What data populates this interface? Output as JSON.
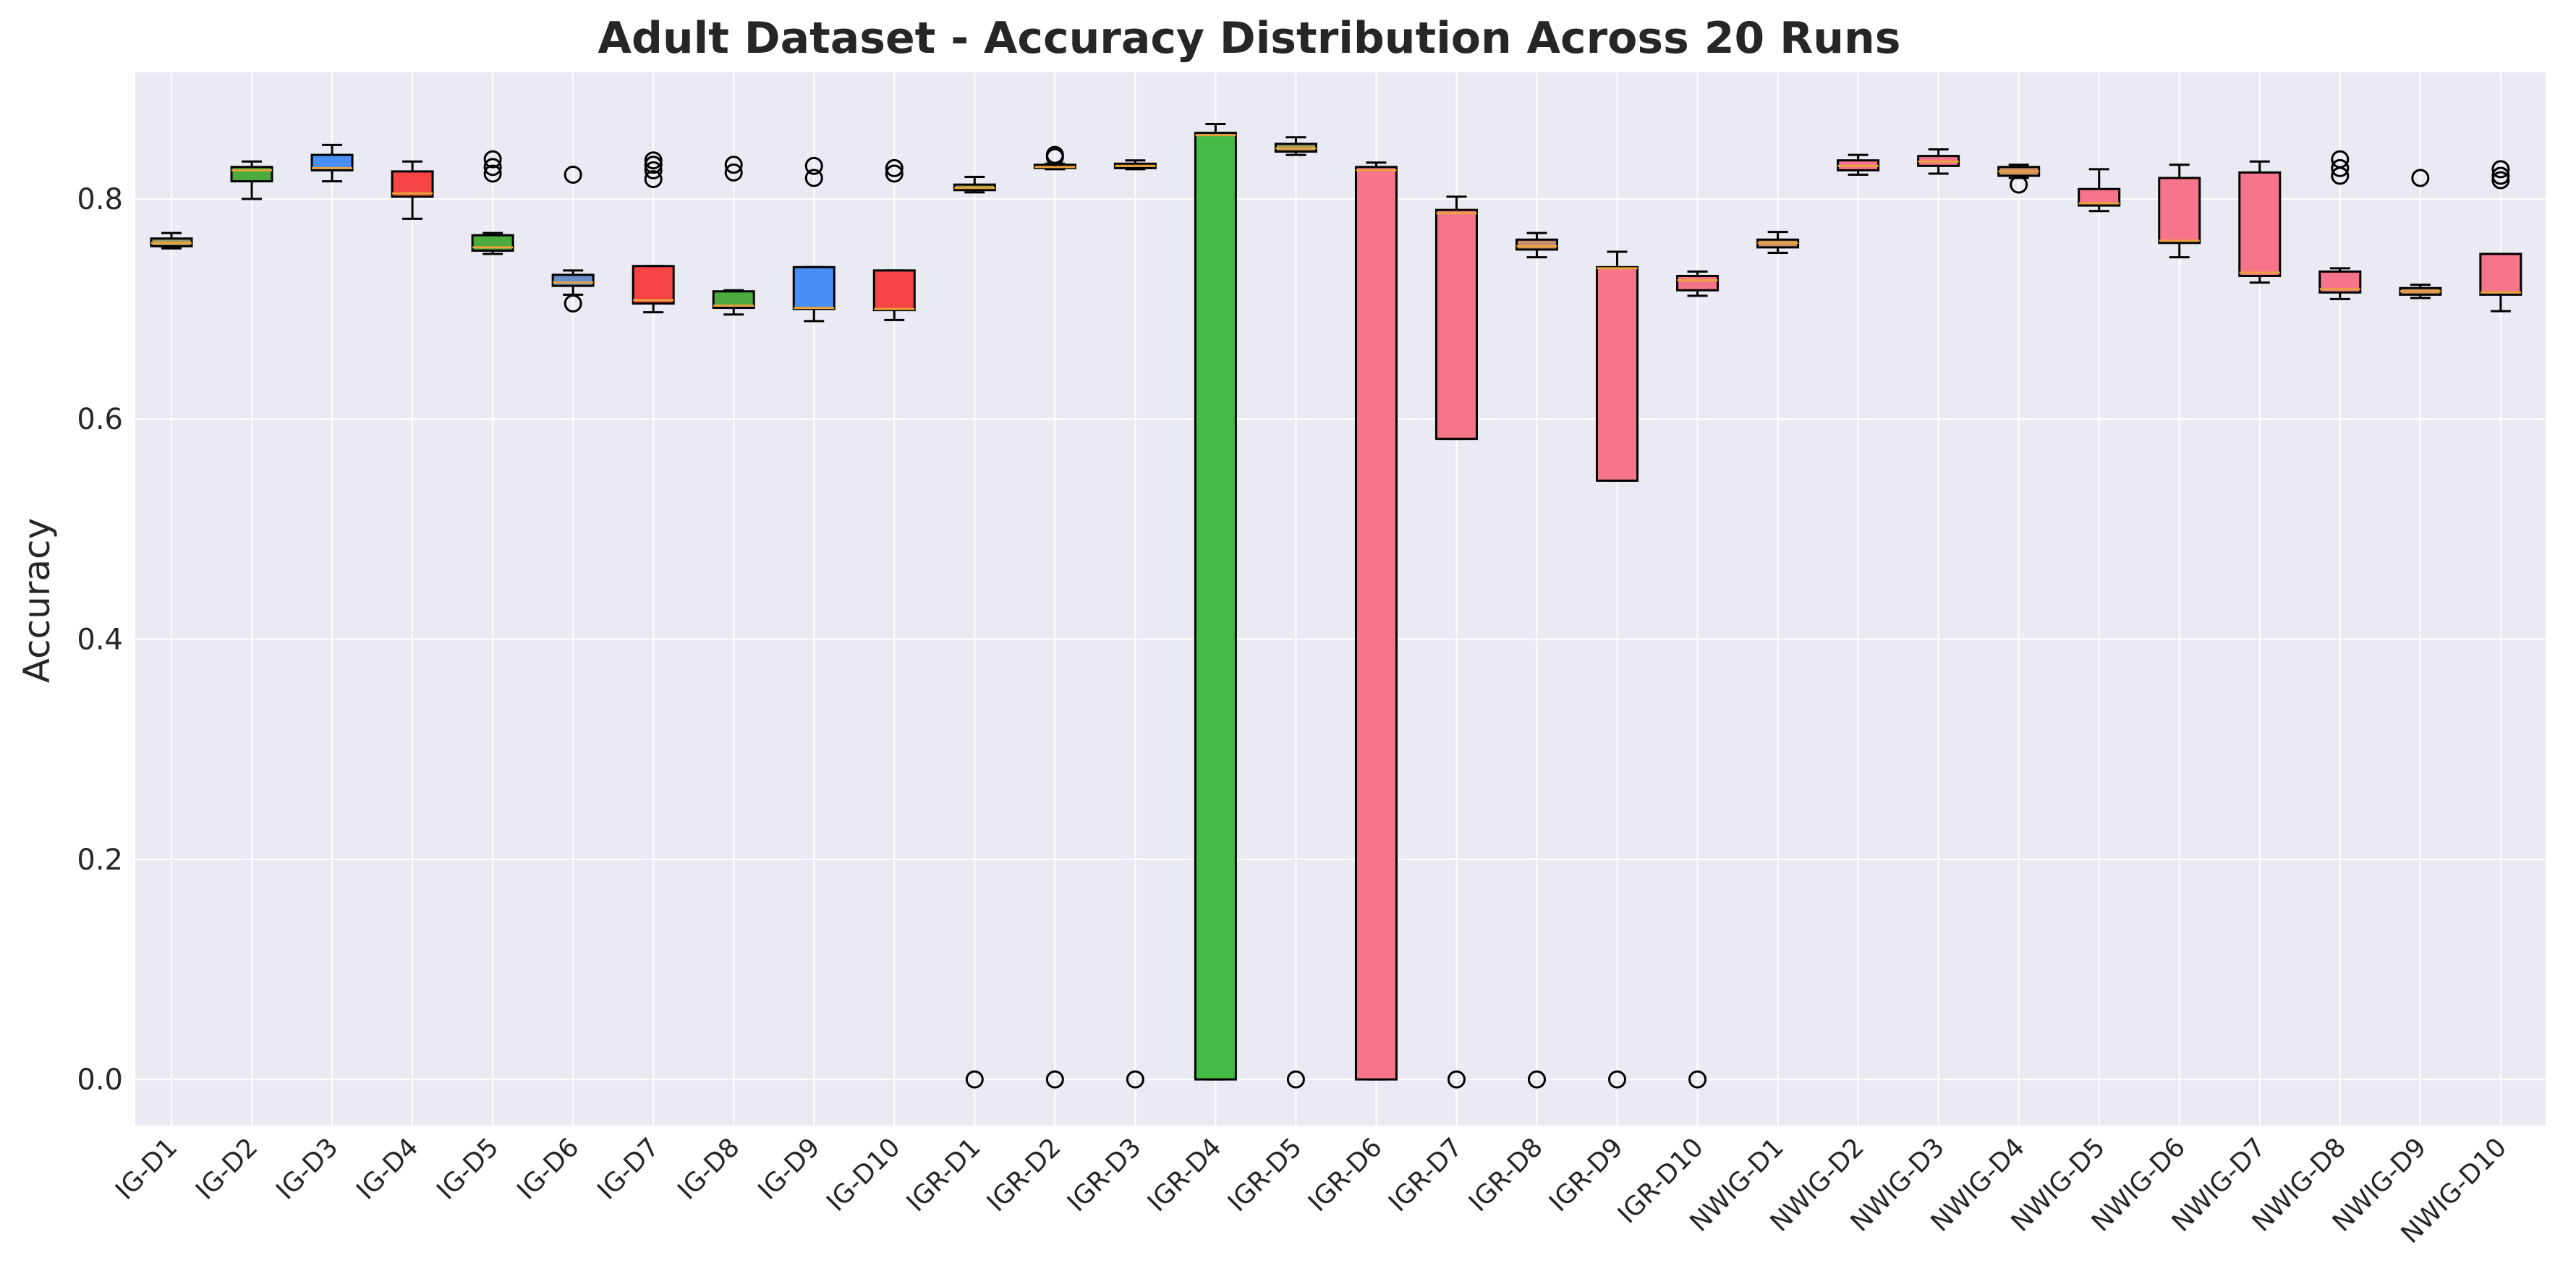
{
  "chart_data": {
    "type": "box",
    "title": "Adult Dataset - Accuracy Distribution Across 20 Runs",
    "xlabel": "",
    "ylabel": "Accuracy",
    "ylim": [
      -0.042,
      0.915
    ],
    "yticks": [
      0.0,
      0.2,
      0.4,
      0.6,
      0.8
    ],
    "ytick_labels": [
      "0.0",
      "0.2",
      "0.4",
      "0.6",
      "0.8"
    ],
    "grid": true,
    "background": "#eaeaf2",
    "box_colors": {
      "IG-D1": "#9b9e63",
      "IG-D2": "#4dab3e",
      "IG-D3": "#4a8ef5",
      "IG-D4": "#f54443",
      "IG-D5": "#4dab3e",
      "IG-D6": "#6a90c9",
      "IG-D7": "#f54443",
      "IG-D8": "#4dab3e",
      "IG-D9": "#4a8ef5",
      "IG-D10": "#f54443",
      "IGR-D1": "#9b9e63",
      "IGR-D2": "#9b9e63",
      "IGR-D3": "#9b9e63",
      "IGR-D4": "#43bb44",
      "IGR-D5": "#9b9e63",
      "IGR-D6": "#f6758a",
      "IGR-D7": "#f6758a",
      "IGR-D8": "#c98d6b",
      "IGR-D9": "#f6758a",
      "IGR-D10": "#f6758a",
      "NWIG-D1": "#c98d6b",
      "NWIG-D2": "#f6758a",
      "NWIG-D3": "#f6758a",
      "NWIG-D4": "#c98d6b",
      "NWIG-D5": "#f6758a",
      "NWIG-D6": "#f6758a",
      "NWIG-D7": "#f6758a",
      "NWIG-D8": "#f6758a",
      "NWIG-D9": "#c98d6b",
      "NWIG-D10": "#f6758a"
    },
    "median_color": "#e8a33c",
    "categories": [
      "IG-D1",
      "IG-D2",
      "IG-D3",
      "IG-D4",
      "IG-D5",
      "IG-D6",
      "IG-D7",
      "IG-D8",
      "IG-D9",
      "IG-D10",
      "IGR-D1",
      "IGR-D2",
      "IGR-D3",
      "IGR-D4",
      "IGR-D5",
      "IGR-D6",
      "IGR-D7",
      "IGR-D8",
      "IGR-D9",
      "IGR-D10",
      "NWIG-D1",
      "NWIG-D2",
      "NWIG-D3",
      "NWIG-D4",
      "NWIG-D5",
      "NWIG-D6",
      "NWIG-D7",
      "NWIG-D8",
      "NWIG-D9",
      "NWIG-D10"
    ],
    "boxes": [
      {
        "label": "IG-D1",
        "whislo": 0.755,
        "q1": 0.757,
        "med": 0.76,
        "q3": 0.764,
        "whishi": 0.769,
        "fliers": []
      },
      {
        "label": "IG-D2",
        "whislo": 0.8,
        "q1": 0.816,
        "med": 0.826,
        "q3": 0.829,
        "whishi": 0.834,
        "fliers": []
      },
      {
        "label": "IG-D3",
        "whislo": 0.816,
        "q1": 0.826,
        "med": 0.828,
        "q3": 0.84,
        "whishi": 0.849,
        "fliers": []
      },
      {
        "label": "IG-D4",
        "whislo": 0.782,
        "q1": 0.802,
        "med": 0.805,
        "q3": 0.825,
        "whishi": 0.834,
        "fliers": []
      },
      {
        "label": "IG-D5",
        "whislo": 0.75,
        "q1": 0.753,
        "med": 0.756,
        "q3": 0.767,
        "whishi": 0.769,
        "fliers": [
          0.823,
          0.829,
          0.836
        ]
      },
      {
        "label": "IG-D6",
        "whislo": 0.713,
        "q1": 0.721,
        "med": 0.724,
        "q3": 0.731,
        "whishi": 0.735,
        "fliers": [
          0.705,
          0.822
        ]
      },
      {
        "label": "IG-D7",
        "whislo": 0.697,
        "q1": 0.705,
        "med": 0.708,
        "q3": 0.739,
        "whishi": 0.739,
        "fliers": [
          0.818,
          0.826,
          0.831,
          0.835
        ]
      },
      {
        "label": "IG-D8",
        "whislo": 0.695,
        "q1": 0.701,
        "med": 0.703,
        "q3": 0.716,
        "whishi": 0.717,
        "fliers": [
          0.824,
          0.831
        ]
      },
      {
        "label": "IG-D9",
        "whislo": 0.689,
        "q1": 0.7,
        "med": 0.701,
        "q3": 0.738,
        "whishi": 0.738,
        "fliers": [
          0.819,
          0.83
        ]
      },
      {
        "label": "IG-D10",
        "whislo": 0.69,
        "q1": 0.699,
        "med": 0.7,
        "q3": 0.735,
        "whishi": 0.735,
        "fliers": [
          0.823,
          0.828
        ]
      },
      {
        "label": "IGR-D1",
        "whislo": 0.806,
        "q1": 0.808,
        "med": 0.81,
        "q3": 0.813,
        "whishi": 0.82,
        "fliers": [
          0.0
        ]
      },
      {
        "label": "IGR-D2",
        "whislo": 0.827,
        "q1": 0.828,
        "med": 0.829,
        "q3": 0.831,
        "whishi": 0.832,
        "fliers": [
          0.0,
          0.838,
          0.84
        ]
      },
      {
        "label": "IGR-D3",
        "whislo": 0.827,
        "q1": 0.828,
        "med": 0.83,
        "q3": 0.832,
        "whishi": 0.835,
        "fliers": [
          0.0
        ]
      },
      {
        "label": "IGR-D4",
        "whislo": 0.0,
        "q1": 0.0,
        "med": 0.858,
        "q3": 0.86,
        "whishi": 0.868,
        "fliers": []
      },
      {
        "label": "IGR-D5",
        "whislo": 0.84,
        "q1": 0.843,
        "med": 0.846,
        "q3": 0.85,
        "whishi": 0.856,
        "fliers": [
          0.0
        ]
      },
      {
        "label": "IGR-D6",
        "whislo": 0.0,
        "q1": 0.0,
        "med": 0.826,
        "q3": 0.829,
        "whishi": 0.833,
        "fliers": []
      },
      {
        "label": "IGR-D7",
        "whislo": 0.582,
        "q1": 0.582,
        "med": 0.787,
        "q3": 0.79,
        "whishi": 0.802,
        "fliers": [
          0.0
        ]
      },
      {
        "label": "IGR-D8",
        "whislo": 0.747,
        "q1": 0.754,
        "med": 0.757,
        "q3": 0.763,
        "whishi": 0.769,
        "fliers": [
          0.0
        ]
      },
      {
        "label": "IGR-D9",
        "whislo": 0.544,
        "q1": 0.544,
        "med": 0.737,
        "q3": 0.738,
        "whishi": 0.752,
        "fliers": [
          0.0
        ]
      },
      {
        "label": "IGR-D10",
        "whislo": 0.712,
        "q1": 0.717,
        "med": 0.726,
        "q3": 0.73,
        "whishi": 0.734,
        "fliers": [
          0.0
        ]
      },
      {
        "label": "NWIG-D1",
        "whislo": 0.751,
        "q1": 0.756,
        "med": 0.76,
        "q3": 0.763,
        "whishi": 0.77,
        "fliers": []
      },
      {
        "label": "NWIG-D2",
        "whislo": 0.822,
        "q1": 0.826,
        "med": 0.83,
        "q3": 0.835,
        "whishi": 0.84,
        "fliers": []
      },
      {
        "label": "NWIG-D3",
        "whislo": 0.823,
        "q1": 0.83,
        "med": 0.834,
        "q3": 0.839,
        "whishi": 0.845,
        "fliers": []
      },
      {
        "label": "NWIG-D4",
        "whislo": 0.819,
        "q1": 0.821,
        "med": 0.825,
        "q3": 0.829,
        "whishi": 0.831,
        "fliers": [
          0.813
        ]
      },
      {
        "label": "NWIG-D5",
        "whislo": 0.789,
        "q1": 0.794,
        "med": 0.796,
        "q3": 0.809,
        "whishi": 0.827,
        "fliers": []
      },
      {
        "label": "NWIG-D6",
        "whislo": 0.747,
        "q1": 0.76,
        "med": 0.762,
        "q3": 0.819,
        "whishi": 0.831,
        "fliers": []
      },
      {
        "label": "NWIG-D7",
        "whislo": 0.724,
        "q1": 0.73,
        "med": 0.733,
        "q3": 0.824,
        "whishi": 0.834,
        "fliers": []
      },
      {
        "label": "NWIG-D8",
        "whislo": 0.709,
        "q1": 0.715,
        "med": 0.718,
        "q3": 0.734,
        "whishi": 0.737,
        "fliers": [
          0.821,
          0.828,
          0.836
        ]
      },
      {
        "label": "NWIG-D9",
        "whislo": 0.71,
        "q1": 0.713,
        "med": 0.716,
        "q3": 0.719,
        "whishi": 0.722,
        "fliers": [
          0.819
        ]
      },
      {
        "label": "NWIG-D10",
        "whislo": 0.698,
        "q1": 0.713,
        "med": 0.715,
        "q3": 0.75,
        "whishi": 0.75,
        "fliers": [
          0.817,
          0.821,
          0.827
        ]
      }
    ]
  }
}
